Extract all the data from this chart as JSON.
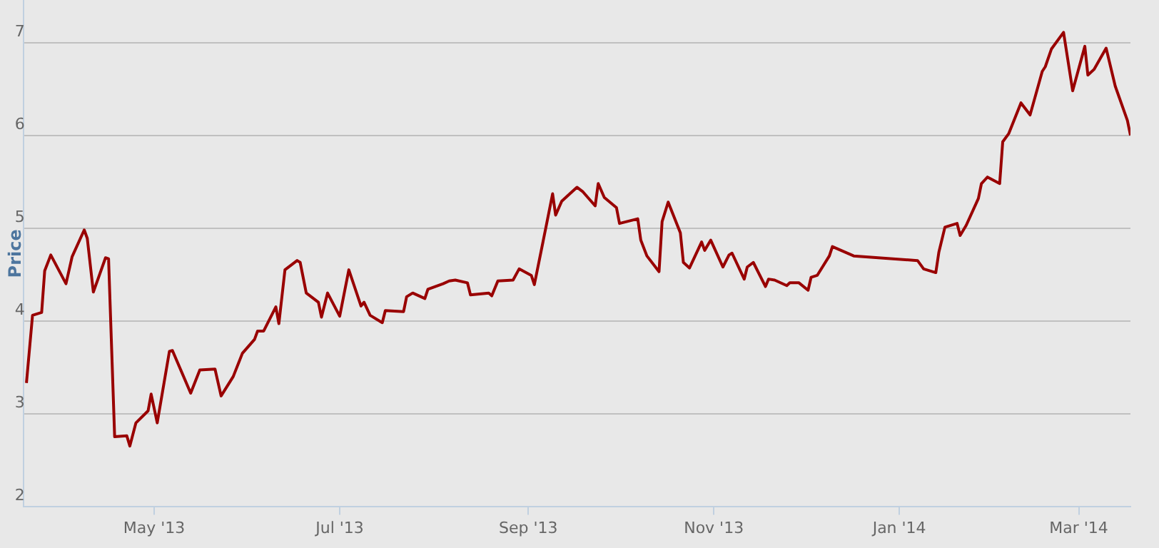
{
  "chart_data": {
    "type": "line",
    "ylabel": "Price",
    "xlim": [
      "2013-03-19",
      "2014-03-18"
    ],
    "ylim": [
      2,
      7.45
    ],
    "yticks": [
      2,
      3,
      4,
      5,
      6,
      7
    ],
    "xticks": [
      {
        "value": "2013-05-01",
        "label": "May '13"
      },
      {
        "value": "2013-07-01",
        "label": "Jul '13"
      },
      {
        "value": "2013-09-01",
        "label": "Sep '13"
      },
      {
        "value": "2013-11-01",
        "label": "Nov '13"
      },
      {
        "value": "2014-01-01",
        "label": "Jan '14"
      },
      {
        "value": "2014-03-01",
        "label": "Mar '14"
      }
    ],
    "grid": "y",
    "legend": false,
    "marker": "none",
    "line_style": "solid",
    "x": [
      "2013-03-20",
      "2013-03-22",
      "2013-03-25",
      "2013-03-26",
      "2013-03-28",
      "2013-04-02",
      "2013-04-04",
      "2013-04-08",
      "2013-04-09",
      "2013-04-11",
      "2013-04-15",
      "2013-04-16",
      "2013-04-18",
      "2013-04-22",
      "2013-04-23",
      "2013-04-25",
      "2013-04-29",
      "2013-04-30",
      "2013-05-02",
      "2013-05-06",
      "2013-05-07",
      "2013-05-13",
      "2013-05-16",
      "2013-05-21",
      "2013-05-23",
      "2013-05-27",
      "2013-05-30",
      "2013-06-03",
      "2013-06-04",
      "2013-06-06",
      "2013-06-10",
      "2013-06-11",
      "2013-06-13",
      "2013-06-17",
      "2013-06-18",
      "2013-06-20",
      "2013-06-24",
      "2013-06-25",
      "2013-06-27",
      "2013-07-01",
      "2013-07-04",
      "2013-07-08",
      "2013-07-09",
      "2013-07-11",
      "2013-07-15",
      "2013-07-16",
      "2013-07-22",
      "2013-07-23",
      "2013-07-25",
      "2013-07-29",
      "2013-07-30",
      "2013-08-04",
      "2013-08-06",
      "2013-08-08",
      "2013-08-12",
      "2013-08-13",
      "2013-08-19",
      "2013-08-20",
      "2013-08-22",
      "2013-08-27",
      "2013-08-29",
      "2013-09-02",
      "2013-09-03",
      "2013-09-07",
      "2013-09-09",
      "2013-09-10",
      "2013-09-12",
      "2013-09-15",
      "2013-09-17",
      "2013-09-19",
      "2013-09-23",
      "2013-09-24",
      "2013-09-26",
      "2013-09-30",
      "2013-10-01",
      "2013-10-07",
      "2013-10-08",
      "2013-10-10",
      "2013-10-14",
      "2013-10-15",
      "2013-10-17",
      "2013-10-21",
      "2013-10-22",
      "2013-10-24",
      "2013-10-28",
      "2013-10-29",
      "2013-10-31",
      "2013-11-04",
      "2013-11-06",
      "2013-11-07",
      "2013-11-11",
      "2013-11-12",
      "2013-11-14",
      "2013-11-18",
      "2013-11-19",
      "2013-11-21",
      "2013-11-25",
      "2013-11-26",
      "2013-11-29",
      "2013-12-02",
      "2013-12-03",
      "2013-12-05",
      "2013-12-09",
      "2013-12-10",
      "2013-12-17",
      "2014-01-07",
      "2014-01-09",
      "2014-01-13",
      "2014-01-14",
      "2014-01-16",
      "2014-01-20",
      "2014-01-21",
      "2014-01-23",
      "2014-01-27",
      "2014-01-28",
      "2014-01-30",
      "2014-02-03",
      "2014-02-04",
      "2014-02-06",
      "2014-02-10",
      "2014-02-13",
      "2014-02-17",
      "2014-02-18",
      "2014-02-20",
      "2014-02-24",
      "2014-02-27",
      "2014-03-03",
      "2014-03-04",
      "2014-03-06",
      "2014-03-10",
      "2014-03-13",
      "2014-03-17",
      "2014-03-18"
    ],
    "series": [
      {
        "color": "#990000",
        "values": [
          3.33,
          4.06,
          4.09,
          4.54,
          4.71,
          4.4,
          4.69,
          4.98,
          4.89,
          4.31,
          4.68,
          4.67,
          2.75,
          2.76,
          2.65,
          2.9,
          3.03,
          3.21,
          2.9,
          3.67,
          3.68,
          3.22,
          3.47,
          3.48,
          3.19,
          3.4,
          3.65,
          3.8,
          3.89,
          3.89,
          4.15,
          3.97,
          4.55,
          4.65,
          4.63,
          4.3,
          4.2,
          4.04,
          4.3,
          4.05,
          4.55,
          4.16,
          4.2,
          4.06,
          3.98,
          4.11,
          4.1,
          4.26,
          4.3,
          4.24,
          4.34,
          4.4,
          4.43,
          4.44,
          4.41,
          4.28,
          4.3,
          4.27,
          4.43,
          4.44,
          4.56,
          4.49,
          4.39,
          5.04,
          5.37,
          5.14,
          5.29,
          5.38,
          5.44,
          5.39,
          5.24,
          5.48,
          5.33,
          5.22,
          5.05,
          5.1,
          4.87,
          4.7,
          4.53,
          5.07,
          5.28,
          4.95,
          4.63,
          4.57,
          4.85,
          4.76,
          4.87,
          4.58,
          4.71,
          4.73,
          4.45,
          4.58,
          4.63,
          4.37,
          4.45,
          4.44,
          4.38,
          4.41,
          4.41,
          4.33,
          4.47,
          4.49,
          4.7,
          4.8,
          4.7,
          4.65,
          4.56,
          4.52,
          4.74,
          5.01,
          5.05,
          4.92,
          5.03,
          5.32,
          5.48,
          5.55,
          5.48,
          5.93,
          6.02,
          6.35,
          6.22,
          6.69,
          6.74,
          6.93,
          7.11,
          6.48,
          6.96,
          6.65,
          6.71,
          6.94,
          6.53,
          6.16,
          6.0
        ]
      }
    ]
  }
}
